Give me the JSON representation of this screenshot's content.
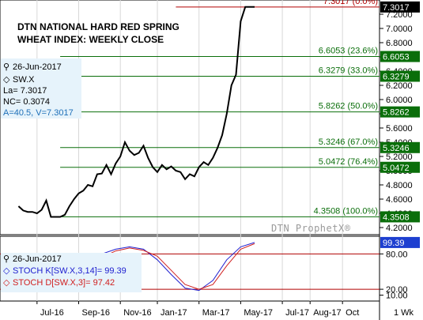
{
  "header": {
    "title_line1": "DTN NATIONAL HARD RED SPRING",
    "title_line2": "WHEAT INDEX: WEEKLY CLOSE"
  },
  "info": {
    "date": "26-Jun-2017",
    "symbol": "SW.X",
    "last": "La= 7.3017",
    "net_change": "NC= 0.3074",
    "cursor": "A=40.5, V=7.3017"
  },
  "stoch_info": {
    "date": "26-Jun-2017",
    "k_label": "STOCH K[SW.X,3,14]= 99.39",
    "d_label": "STOCH D[SW.X,3]= 97.42"
  },
  "watermark": "DTN ProphetX®",
  "timeframe": "1 Wk",
  "colors": {
    "price": "#000000",
    "retracement": "#0a6e0a",
    "high_line": "#b00000",
    "stoch_k": "#2020d0",
    "stoch_d": "#d02020",
    "info_box": "#e6f3fb"
  },
  "chart_data": {
    "type": "line",
    "title": "DTN NATIONAL HARD RED SPRING WHEAT INDEX: WEEKLY CLOSE",
    "x_labels": [
      "Jul-16",
      "Sep-16",
      "Nov-16",
      "Jan-17",
      "Mar-17",
      "May-17",
      "Jul-17",
      "Aug-17",
      "Oct"
    ],
    "price_axis": {
      "ticks": [
        "7.2000",
        "7.0000",
        "6.8000",
        "6.6000",
        "6.4000",
        "6.2000",
        "6.0000",
        "5.8000",
        "5.6000",
        "5.4000",
        "5.2000",
        "5.0000",
        "4.8000",
        "4.6000",
        "4.4000",
        "4.2000"
      ],
      "ylim": [
        4.1,
        7.4
      ]
    },
    "stoch_axis": {
      "ticks": [
        "80.00",
        "20.00",
        "10.00"
      ],
      "ylim": [
        0,
        110
      ]
    },
    "retracements": [
      {
        "label": "7.3017 (0.0%)",
        "badge": "7.3017",
        "value": 7.3017,
        "kind": "high"
      },
      {
        "label": "6.6053 (23.6%)",
        "badge": "6.6053",
        "value": 6.6053,
        "kind": "fib"
      },
      {
        "label": "6.3279 (33.0%)",
        "badge": "6.3279",
        "value": 6.3279,
        "kind": "fib"
      },
      {
        "label": "5.8262 (50.0%)",
        "badge": "5.8262",
        "value": 5.8262,
        "kind": "fib"
      },
      {
        "label": "5.3246 (67.0%)",
        "badge": "5.3246",
        "value": 5.3246,
        "kind": "fib"
      },
      {
        "label": "5.0472 (76.4%)",
        "badge": "5.0472",
        "value": 5.0472,
        "kind": "fib"
      },
      {
        "label": "4.3508 (100.0%)",
        "badge": "4.3508",
        "value": 4.3508,
        "kind": "fib"
      }
    ],
    "stoch_badge": "99.39",
    "series": [
      {
        "name": "SW.X",
        "weeks": [
          0,
          1,
          2,
          3,
          4,
          5,
          6,
          7,
          8,
          9,
          10,
          11,
          12,
          13,
          14,
          15,
          16,
          17,
          18,
          19,
          20,
          21,
          22,
          23,
          24,
          25,
          26,
          27,
          28,
          29,
          30,
          31,
          32,
          33,
          34,
          35,
          36,
          37,
          38,
          39,
          40,
          41,
          42,
          43,
          44,
          45,
          46,
          47,
          48,
          49,
          50,
          51
        ],
        "values": [
          4.5,
          4.44,
          4.42,
          4.42,
          4.4,
          4.45,
          4.58,
          4.35,
          4.35,
          4.35,
          4.38,
          4.5,
          4.6,
          4.68,
          4.72,
          4.8,
          4.78,
          4.95,
          4.96,
          5.08,
          4.95,
          5.1,
          5.2,
          5.4,
          5.28,
          5.22,
          5.25,
          5.35,
          5.18,
          5.05,
          4.98,
          5.08,
          5.02,
          5.06,
          5.0,
          4.98,
          4.88,
          4.95,
          4.92,
          5.05,
          5.12,
          5.08,
          5.18,
          5.32,
          5.5,
          5.8,
          6.2,
          6.35,
          7.1,
          7.3017,
          7.3017,
          7.3017
        ]
      },
      {
        "name": "STOCH K[SW.X,3,14]",
        "weeks": [
          0,
          3,
          6,
          9,
          12,
          15,
          18,
          21,
          24,
          27,
          30,
          33,
          36,
          39,
          42,
          45,
          48,
          51
        ],
        "values": [
          45,
          55,
          70,
          35,
          40,
          55,
          80,
          88,
          92,
          88,
          70,
          45,
          22,
          18,
          35,
          70,
          92,
          99.39
        ]
      },
      {
        "name": "STOCH D[SW.X,3]",
        "weeks": [
          0,
          3,
          6,
          9,
          12,
          15,
          18,
          21,
          24,
          27,
          30,
          33,
          36,
          39,
          42,
          45,
          48,
          51
        ],
        "values": [
          42,
          50,
          65,
          42,
          36,
          50,
          74,
          85,
          90,
          86,
          76,
          52,
          28,
          20,
          28,
          60,
          88,
          97.42
        ]
      }
    ],
    "month_weeks": {
      "Jul-16": 4,
      "Sep-16": 13,
      "Nov-16": 22,
      "Jan-17": 30,
      "Mar-17": 39,
      "May-17": 48,
      "Jul-17": 57,
      "Aug-17": 63,
      "Oct": 70
    }
  }
}
